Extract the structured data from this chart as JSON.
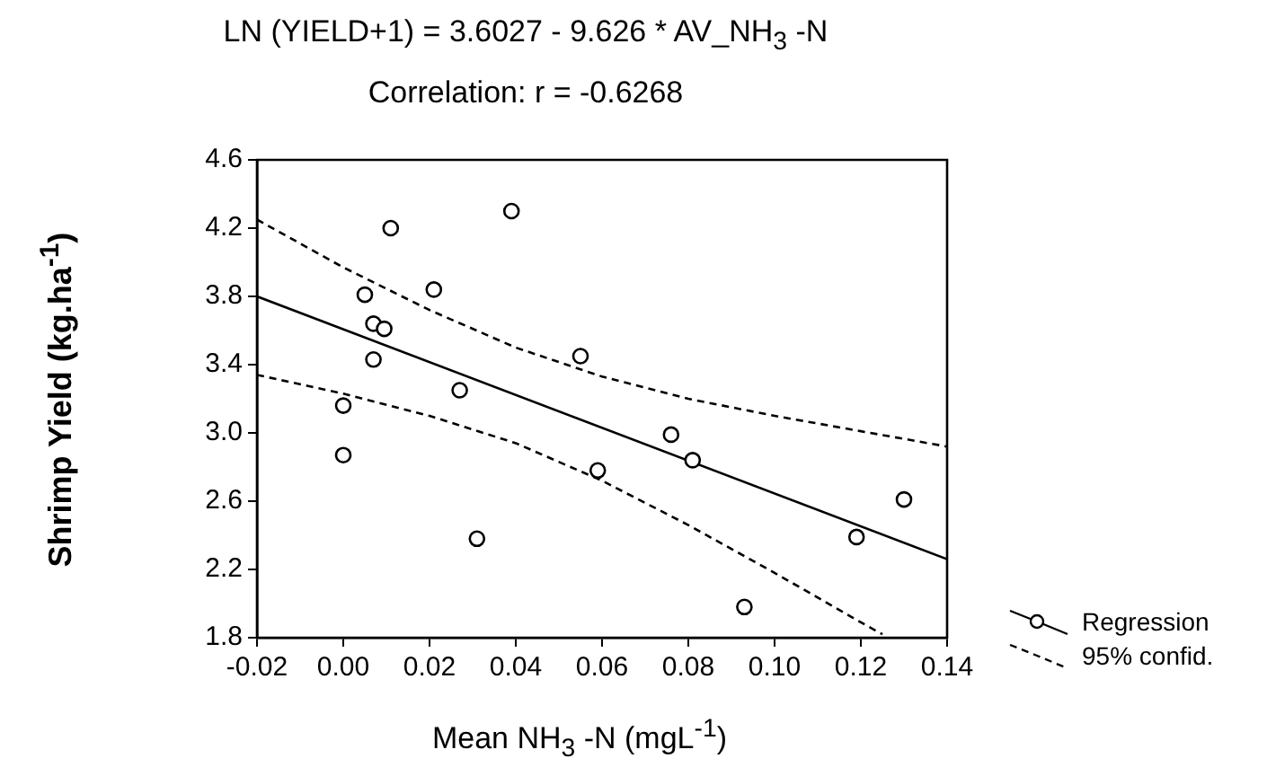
{
  "chart_data": {
    "type": "scatter",
    "title": "LN (YIELD+1) = 3.6027 - 9.626 * AV_NH$_{3}$ -N",
    "subtitle": "Correlation: r = -0.6268",
    "xlabel": "Mean NH$_{3}$ -N (mgL$^{-1}$)",
    "ylabel": "Shrimp Yield (kg.ha$^{-1}$)",
    "xlim": [
      -0.02,
      0.14
    ],
    "xticks": [
      -0.02,
      {
        "value": 0,
        "label": "0.00"
      },
      0.02,
      0.04,
      0.06,
      0.08,
      {
        "value": 0.1,
        "label": "0.10"
      },
      0.12,
      0.14
    ],
    "ylim": [
      1.8,
      4.6
    ],
    "yticks": [
      1.8,
      2.2,
      2.6,
      {
        "value": 3,
        "label": "3.0"
      },
      3.4,
      3.8,
      4.2,
      4.6
    ],
    "grid": false,
    "legend": "right",
    "series": [
      {
        "marker": "circle",
        "color": "#000000",
        "x": [
          0.0,
          0.0,
          0.005,
          0.007,
          0.007,
          0.0095,
          0.011,
          0.021,
          0.027,
          0.031,
          0.039,
          0.055,
          0.059,
          0.076,
          0.081,
          0.093,
          0.119,
          0.13
        ],
        "values": [
          3.16,
          2.87,
          3.81,
          3.64,
          3.43,
          3.61,
          4.2,
          3.84,
          3.25,
          2.38,
          4.3,
          3.45,
          2.78,
          2.99,
          2.84,
          1.98,
          2.39,
          2.61
        ]
      },
      {
        "name": "Regression",
        "type": "line",
        "line_style": "solid",
        "color": "#000000",
        "x": [
          -0.02,
          0.14
        ],
        "values": [
          3.8,
          2.26
        ]
      },
      {
        "name": "95% confid.",
        "type": "line",
        "line_style": "dashed",
        "color": "#000000",
        "x": [
          -0.02,
          0.0,
          0.02,
          0.04,
          0.06,
          0.08,
          0.1,
          0.12,
          0.14
        ],
        "values": [
          4.25,
          3.97,
          3.72,
          3.5,
          3.33,
          3.2,
          3.1,
          3.01,
          2.92
        ]
      },
      {
        "type": "line",
        "line_style": "dashed",
        "color": "#000000",
        "x": [
          -0.02,
          0.0,
          0.02,
          0.04,
          0.06,
          0.08,
          0.1,
          0.12,
          0.125
        ],
        "values": [
          3.34,
          3.23,
          3.1,
          2.94,
          2.72,
          2.46,
          2.18,
          1.89,
          1.82
        ]
      }
    ]
  }
}
